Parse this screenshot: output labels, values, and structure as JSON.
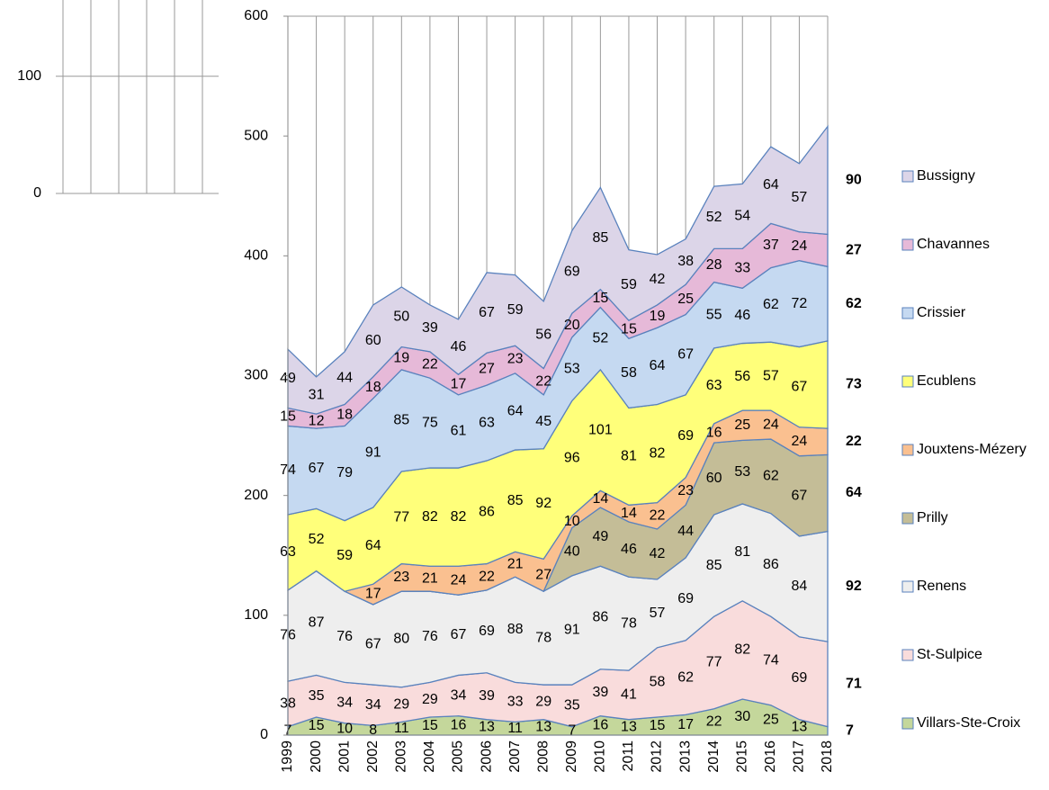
{
  "chart_data": [
    {
      "type": "stacked_area",
      "categories": [
        "1999",
        "2000",
        "2001",
        "2002",
        "2003",
        "2004",
        "2005",
        "2006",
        "2007",
        "2008",
        "2009",
        "2010",
        "2011",
        "2012",
        "2013",
        "2014",
        "2015",
        "2016",
        "2017",
        "2018"
      ],
      "ylim": [
        0,
        600
      ],
      "yticks": [
        0,
        100,
        200,
        300,
        400,
        500,
        600
      ],
      "grid": "vertical",
      "legend": "right",
      "series": [
        {
          "name": "Villars-Ste-Croix",
          "color": "#c4d79b",
          "values": [
            7,
            15,
            10,
            8,
            11,
            15,
            16,
            13,
            11,
            13,
            7,
            16,
            13,
            15,
            17,
            22,
            30,
            25,
            13,
            7
          ]
        },
        {
          "name": "St-Sulpice",
          "color": "#f9dcdc",
          "values": [
            38,
            35,
            34,
            34,
            29,
            29,
            34,
            39,
            33,
            29,
            35,
            39,
            41,
            58,
            62,
            77,
            82,
            74,
            69,
            71
          ]
        },
        {
          "name": "Renens",
          "color": "#eeeeee",
          "values": [
            76,
            87,
            76,
            67,
            80,
            76,
            67,
            69,
            88,
            78,
            91,
            86,
            78,
            57,
            69,
            85,
            81,
            86,
            84,
            92
          ]
        },
        {
          "name": "Prilly",
          "color": "#c4bd97",
          "values": [
            null,
            null,
            null,
            null,
            null,
            null,
            null,
            null,
            null,
            null,
            40,
            49,
            46,
            42,
            44,
            60,
            53,
            62,
            67,
            64
          ]
        },
        {
          "name": "Jouxtens-Mézery",
          "color": "#fac090",
          "values": [
            null,
            null,
            null,
            17,
            23,
            21,
            24,
            22,
            21,
            27,
            10,
            14,
            14,
            22,
            23,
            16,
            25,
            24,
            24,
            22
          ]
        },
        {
          "name": "Ecublens",
          "color": "#ffff7a",
          "values": [
            63,
            52,
            59,
            64,
            77,
            82,
            82,
            86,
            85,
            92,
            96,
            101,
            81,
            82,
            69,
            63,
            56,
            57,
            67,
            73
          ]
        },
        {
          "name": "Crissier",
          "color": "#c5d9f1",
          "values": [
            74,
            67,
            79,
            91,
            85,
            75,
            61,
            63,
            64,
            45,
            53,
            52,
            58,
            64,
            67,
            55,
            46,
            62,
            72,
            62
          ]
        },
        {
          "name": "Chavannes",
          "color": "#e6b9d8",
          "values": [
            15,
            12,
            18,
            18,
            19,
            22,
            17,
            27,
            23,
            22,
            20,
            15,
            15,
            19,
            25,
            28,
            33,
            37,
            24,
            27
          ]
        },
        {
          "name": "Bussigny",
          "color": "#dcd5e8",
          "values": [
            49,
            31,
            44,
            60,
            50,
            39,
            46,
            67,
            59,
            56,
            69,
            85,
            59,
            42,
            38,
            52,
            54,
            64,
            57,
            90
          ]
        }
      ]
    },
    {
      "type": "grid_fragment",
      "ylim": [
        0,
        165
      ],
      "yticks": [
        0,
        100
      ]
    }
  ]
}
